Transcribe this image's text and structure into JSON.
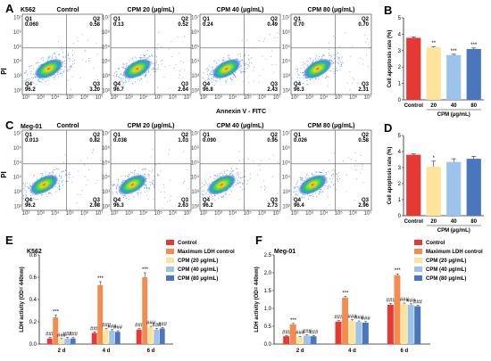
{
  "colors": {
    "control": "#e53935",
    "max_ldh": "#f58c4f",
    "cpm20": "#fde49a",
    "cpm40": "#9dc3ea",
    "cpm80": "#4a76bd",
    "error": "#222222",
    "gate": "#555555"
  },
  "flow_common": {
    "y_axis": "PI",
    "x_axis": "Annexin V - FITC",
    "tick_labels": [
      "10²",
      "10³",
      "10⁴",
      "10⁵",
      "10⁶",
      "10⁷"
    ],
    "quadrants": [
      "Q1",
      "Q2",
      "Q3",
      "Q4"
    ]
  },
  "panel_A": {
    "letter": "A",
    "cell_line": "K562",
    "plots": [
      {
        "title": "Control",
        "q1": "0.060",
        "q2": "0.58",
        "q3": "3.20",
        "q4": "96.2"
      },
      {
        "title": "CPM 20 (μg/mL)",
        "q1": "0.13",
        "q2": "0.52",
        "q3": "2.64",
        "q4": "96.7"
      },
      {
        "title": "CPM 40 (μg/mL)",
        "q1": "0.24",
        "q2": "0.49",
        "q3": "2.43",
        "q4": "96.8"
      },
      {
        "title": "CPM 80 (μg/mL)",
        "q1": "0.70",
        "q2": "0.70",
        "q3": "2.31",
        "q4": "96.3"
      }
    ]
  },
  "panel_C": {
    "letter": "C",
    "cell_line": "Meg-01",
    "plots": [
      {
        "title": "Control",
        "q1": "0.013",
        "q2": "0.82",
        "q3": "2.98",
        "q4": "96.2"
      },
      {
        "title": "CPM 20 (μg/mL)",
        "q1": "0.038",
        "q2": "1.03",
        "q3": "2.63",
        "q4": "96.3"
      },
      {
        "title": "CPM 40 (μg/mL)",
        "q1": "0.090",
        "q2": "0.95",
        "q3": "2.73",
        "q4": "96.2"
      },
      {
        "title": "CPM 80 (μg/mL)",
        "q1": "0.026",
        "q2": "0.58",
        "q3": "2.96",
        "q4": "96.4"
      }
    ]
  },
  "chart_data": [
    {
      "id": "B",
      "type": "bar",
      "letter": "B",
      "ylabel": "Cell apoptosis rate (%)",
      "xlabel": "CPM (μg/mL)",
      "categories": [
        "Control",
        "20",
        "40",
        "80"
      ],
      "values": [
        3.78,
        3.2,
        2.73,
        3.1
      ],
      "errors": [
        0.06,
        0.05,
        0.05,
        0.06
      ],
      "sig": [
        "",
        "**",
        "***",
        "***"
      ],
      "ylim": [
        0,
        5
      ],
      "yticks": [
        "0",
        "1",
        "2",
        "3",
        "4",
        "5"
      ]
    },
    {
      "id": "D",
      "type": "bar",
      "letter": "D",
      "ylabel": "Cell apoptosis rate (%)",
      "xlabel": "CPM (μg/mL)",
      "categories": [
        "Control",
        "20",
        "40",
        "80"
      ],
      "values": [
        3.8,
        3.05,
        3.35,
        3.55
      ],
      "errors": [
        0.05,
        0.35,
        0.2,
        0.15
      ],
      "sig": [
        "",
        "*",
        "",
        ""
      ],
      "ylim": [
        0,
        5
      ],
      "yticks": [
        "0",
        "1",
        "2",
        "3",
        "4",
        "5"
      ]
    },
    {
      "id": "E",
      "type": "bar",
      "letter": "E",
      "cell_line": "K562",
      "ylabel": "LDH activity (OD= 440nm)",
      "categories": [
        "2 d",
        "4 d",
        "6 d"
      ],
      "series": [
        {
          "name": "Control",
          "values": [
            0.05,
            0.1,
            0.13
          ],
          "errors": [
            0.01,
            0.01,
            0.01
          ],
          "sig": [
            "###",
            "###",
            "###"
          ]
        },
        {
          "name": "Maximum LDH control",
          "values": [
            0.24,
            0.53,
            0.6
          ],
          "errors": [
            0.02,
            0.03,
            0.04
          ],
          "sig": [
            "***",
            "***",
            "***"
          ]
        },
        {
          "name": "CPM (20 μg/mL)",
          "values": [
            0.04,
            0.13,
            0.15
          ],
          "errors": [
            0.01,
            0.01,
            0.01
          ],
          "sig": [
            "###",
            "###",
            "###"
          ]
        },
        {
          "name": "CPM (40 μg/mL)",
          "values": [
            0.05,
            0.12,
            0.13
          ],
          "errors": [
            0.01,
            0.01,
            0.01
          ],
          "sig": [
            "###",
            "###",
            "###"
          ]
        },
        {
          "name": "CPM (80 μg/mL)",
          "values": [
            0.05,
            0.11,
            0.14
          ],
          "errors": [
            0.01,
            0.01,
            0.01
          ],
          "sig": [
            "###",
            "###",
            "###"
          ]
        }
      ],
      "ylim": [
        0,
        0.8
      ],
      "yticks": [
        "0.0",
        "0.2",
        "0.4",
        "0.6",
        "0.8"
      ]
    },
    {
      "id": "F",
      "type": "bar",
      "letter": "F",
      "cell_line": "Meg-01",
      "ylabel": "LDH activity (OD= 440nm)",
      "categories": [
        "2 d",
        "4 d",
        "6 d"
      ],
      "series": [
        {
          "name": "Control",
          "values": [
            0.22,
            0.63,
            1.1
          ],
          "errors": [
            0.02,
            0.03,
            0.04
          ],
          "sig": [
            "###",
            "###",
            "###"
          ]
        },
        {
          "name": "Maximum LDH control",
          "values": [
            0.55,
            1.3,
            1.93
          ],
          "errors": [
            0.03,
            0.04,
            0.04
          ],
          "sig": [
            "***",
            "***",
            "***"
          ]
        },
        {
          "name": "CPM (20 μg/mL)",
          "values": [
            0.2,
            0.65,
            1.12
          ],
          "errors": [
            0.02,
            0.03,
            0.03
          ],
          "sig": [
            "###",
            "###",
            "###"
          ]
        },
        {
          "name": "CPM (40 μg/mL)",
          "values": [
            0.24,
            0.62,
            1.1
          ],
          "errors": [
            0.02,
            0.03,
            0.03
          ],
          "sig": [
            "###",
            "###",
            "###"
          ]
        },
        {
          "name": "CPM (80 μg/mL)",
          "values": [
            0.22,
            0.6,
            1.06
          ],
          "errors": [
            0.02,
            0.03,
            0.03
          ],
          "sig": [
            "###",
            "###",
            "###"
          ]
        }
      ],
      "ylim": [
        0,
        2.5
      ],
      "yticks": [
        "0.0",
        "0.5",
        "1.0",
        "1.5",
        "2.0",
        "2.5"
      ]
    }
  ]
}
